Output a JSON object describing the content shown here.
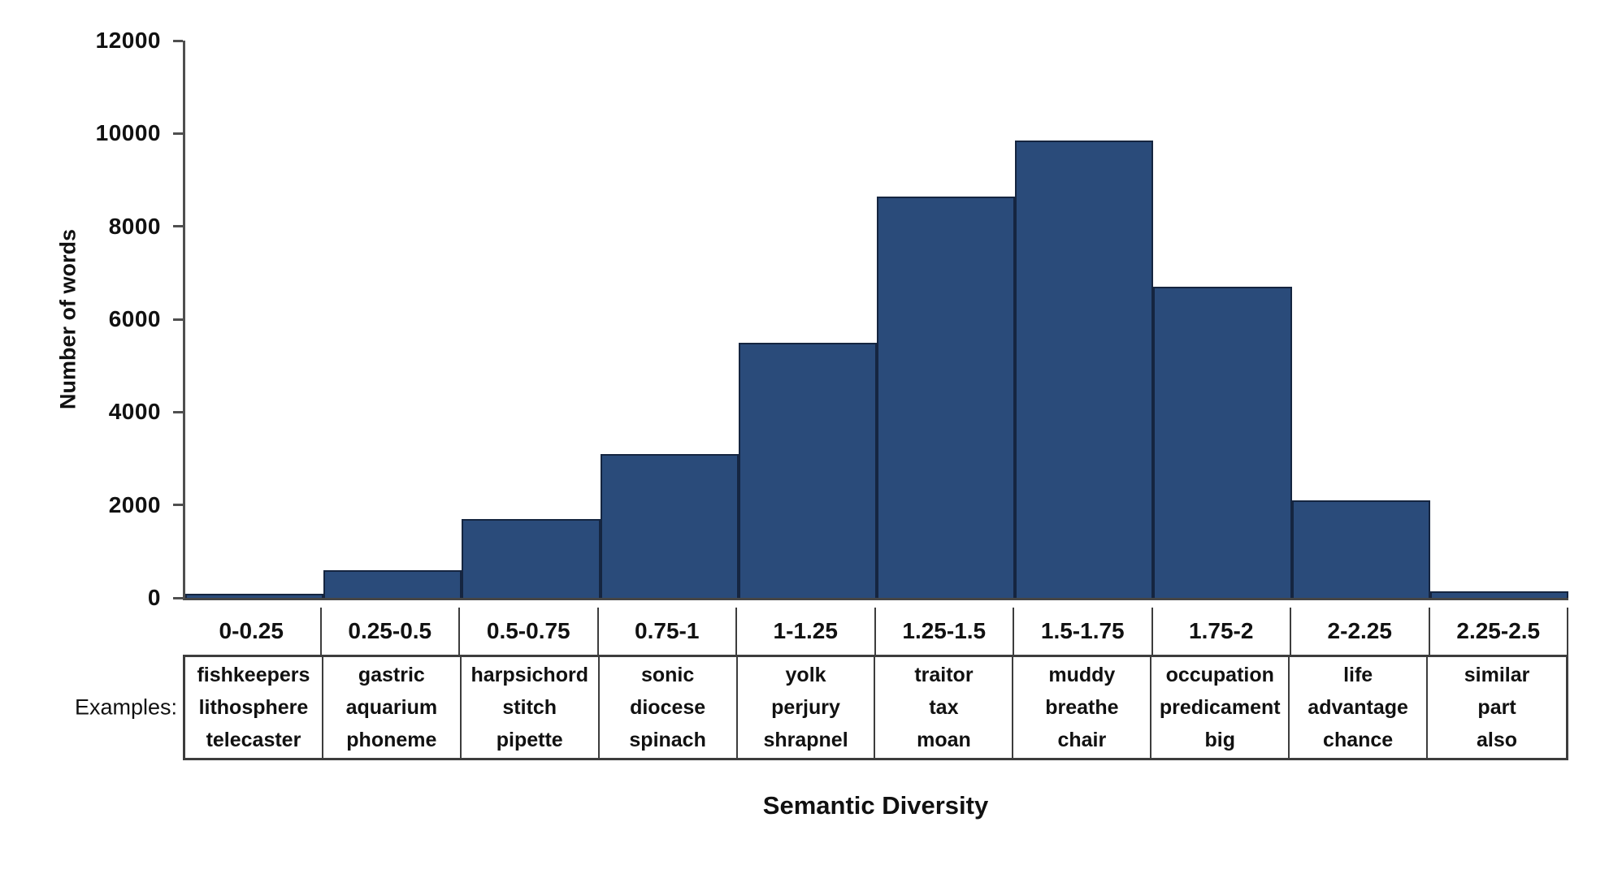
{
  "figure": {
    "examples_label": "Examples:"
  },
  "chart_data": {
    "type": "bar",
    "title": "",
    "xlabel": "Semantic Diversity",
    "ylabel": "Number of words",
    "ylim": [
      0,
      12000
    ],
    "yticks": [
      12000,
      10000,
      8000,
      6000,
      4000,
      2000,
      0
    ],
    "grid": false,
    "legend": "none",
    "categories": [
      "0-0.25",
      "0.25-0.5",
      "0.5-0.75",
      "0.75-1",
      "1-1.25",
      "1.25-1.5",
      "1.5-1.75",
      "1.75-2",
      "2-2.25",
      "2.25-2.5"
    ],
    "values": [
      80,
      600,
      1700,
      3100,
      5500,
      8650,
      9850,
      6700,
      2100,
      140
    ],
    "bar_color": "#2a4b7a",
    "bar_border_color": "#152540",
    "axis_color": "#4f4f4f",
    "examples": [
      [
        "fishkeepers",
        "lithosphere",
        "telecaster"
      ],
      [
        "gastric",
        "aquarium",
        "phoneme"
      ],
      [
        "harpsichord",
        "stitch",
        "pipette"
      ],
      [
        "sonic",
        "diocese",
        "spinach"
      ],
      [
        "yolk",
        "perjury",
        "shrapnel"
      ],
      [
        "traitor",
        "tax",
        "moan"
      ],
      [
        "muddy",
        "breathe",
        "chair"
      ],
      [
        "occupation",
        "predicament",
        "big"
      ],
      [
        "life",
        "advantage",
        "chance"
      ],
      [
        "similar",
        "part",
        "also"
      ]
    ]
  }
}
